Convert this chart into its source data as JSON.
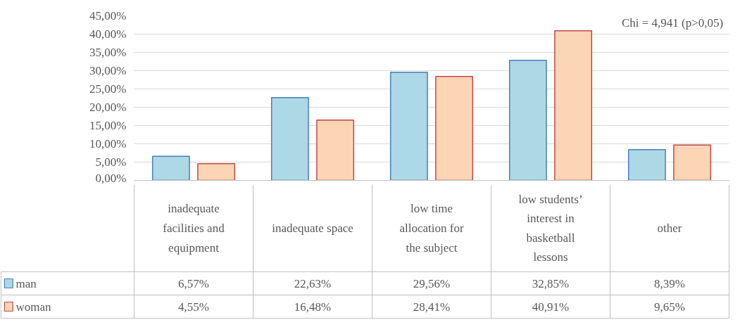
{
  "chart_data": {
    "type": "bar",
    "categories": [
      "inadequate facilities and equipment",
      "inadequate space",
      "low time allocation for the subject",
      "low students’ interest in basketball lessons",
      "other"
    ],
    "series": [
      {
        "name": "man",
        "color": "#add8e6",
        "values": [
          6.57,
          22.63,
          29.56,
          32.85,
          8.39
        ],
        "value_labels": [
          "6,57%",
          "22,63%",
          "29,56%",
          "32,85%",
          "8,39%"
        ]
      },
      {
        "name": "woman",
        "color": "#fcd5b5",
        "values": [
          4.55,
          16.48,
          28.41,
          40.91,
          9.65
        ],
        "value_labels": [
          "4,55%",
          "16,48%",
          "28,41%",
          "40,91%",
          "9,65%"
        ]
      }
    ],
    "ylim": [
      0,
      45
    ],
    "yticks": [
      {
        "value": 0,
        "label": "0,00%"
      },
      {
        "value": 5,
        "label": "5,00%"
      },
      {
        "value": 10,
        "label": "10,00%"
      },
      {
        "value": 15,
        "label": "15,00%"
      },
      {
        "value": 20,
        "label": "20,00%"
      },
      {
        "value": 25,
        "label": "25,00%"
      },
      {
        "value": 30,
        "label": "30,00%"
      },
      {
        "value": 35,
        "label": "35,00%"
      },
      {
        "value": 40,
        "label": "40,00%"
      },
      {
        "value": 45,
        "label": "45,00%"
      }
    ],
    "annotations": [
      "Chi = 4,941  (p>0,05)"
    ],
    "grid": "y",
    "legend": "bottom",
    "tick_labels": "y"
  }
}
